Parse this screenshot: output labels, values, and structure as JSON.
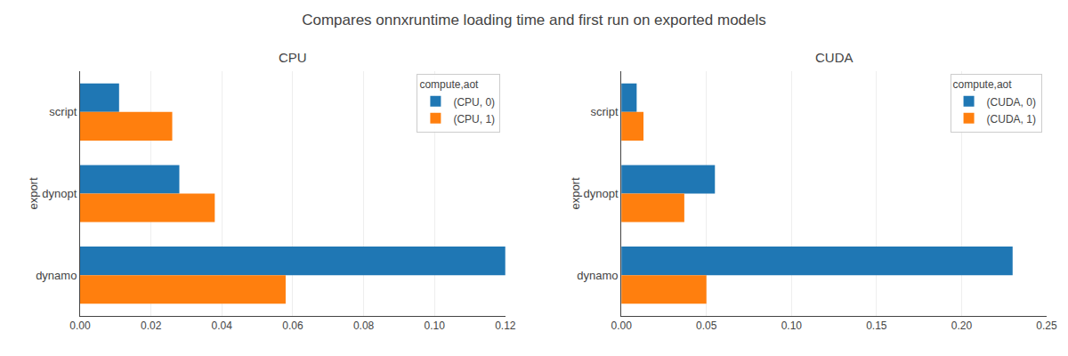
{
  "title": "Compares onnxruntime loading time and first run on exported models",
  "chart_data": [
    {
      "type": "bar",
      "orientation": "horizontal",
      "title": "CPU",
      "y_label": "export",
      "categories": [
        "script",
        "dynopt",
        "dynamo"
      ],
      "legend_title": "compute,aot",
      "legend": "upper right",
      "grid": true,
      "series": [
        {
          "name": "(CPU, 0)",
          "color": "#1f77b4",
          "values": [
            0.011,
            0.028,
            0.12
          ]
        },
        {
          "name": "(CPU, 1)",
          "color": "#ff7f0e",
          "values": [
            0.026,
            0.038,
            0.058
          ]
        }
      ],
      "xlim": [
        0,
        0.12
      ],
      "xticks": [
        {
          "value": 0,
          "label": "0.00"
        },
        0.02,
        0.04,
        0.06,
        0.08,
        {
          "value": 0.1,
          "label": "0.10"
        },
        0.12
      ]
    },
    {
      "type": "bar",
      "orientation": "horizontal",
      "title": "CUDA",
      "y_label": "export",
      "categories": [
        "script",
        "dynopt",
        "dynamo"
      ],
      "legend_title": "compute,aot",
      "legend": "upper right",
      "grid": true,
      "series": [
        {
          "name": "(CUDA, 0)",
          "color": "#1f77b4",
          "values": [
            0.009,
            0.055,
            0.23
          ]
        },
        {
          "name": "(CUDA, 1)",
          "color": "#ff7f0e",
          "values": [
            0.013,
            0.037,
            0.05
          ]
        }
      ],
      "xlim": [
        0,
        0.25
      ],
      "xticks": [
        {
          "value": 0,
          "label": "0.00"
        },
        0.05,
        {
          "value": 0.1,
          "label": "0.10"
        },
        0.15,
        {
          "value": 0.2,
          "label": "0.20"
        },
        0.25
      ]
    }
  ]
}
